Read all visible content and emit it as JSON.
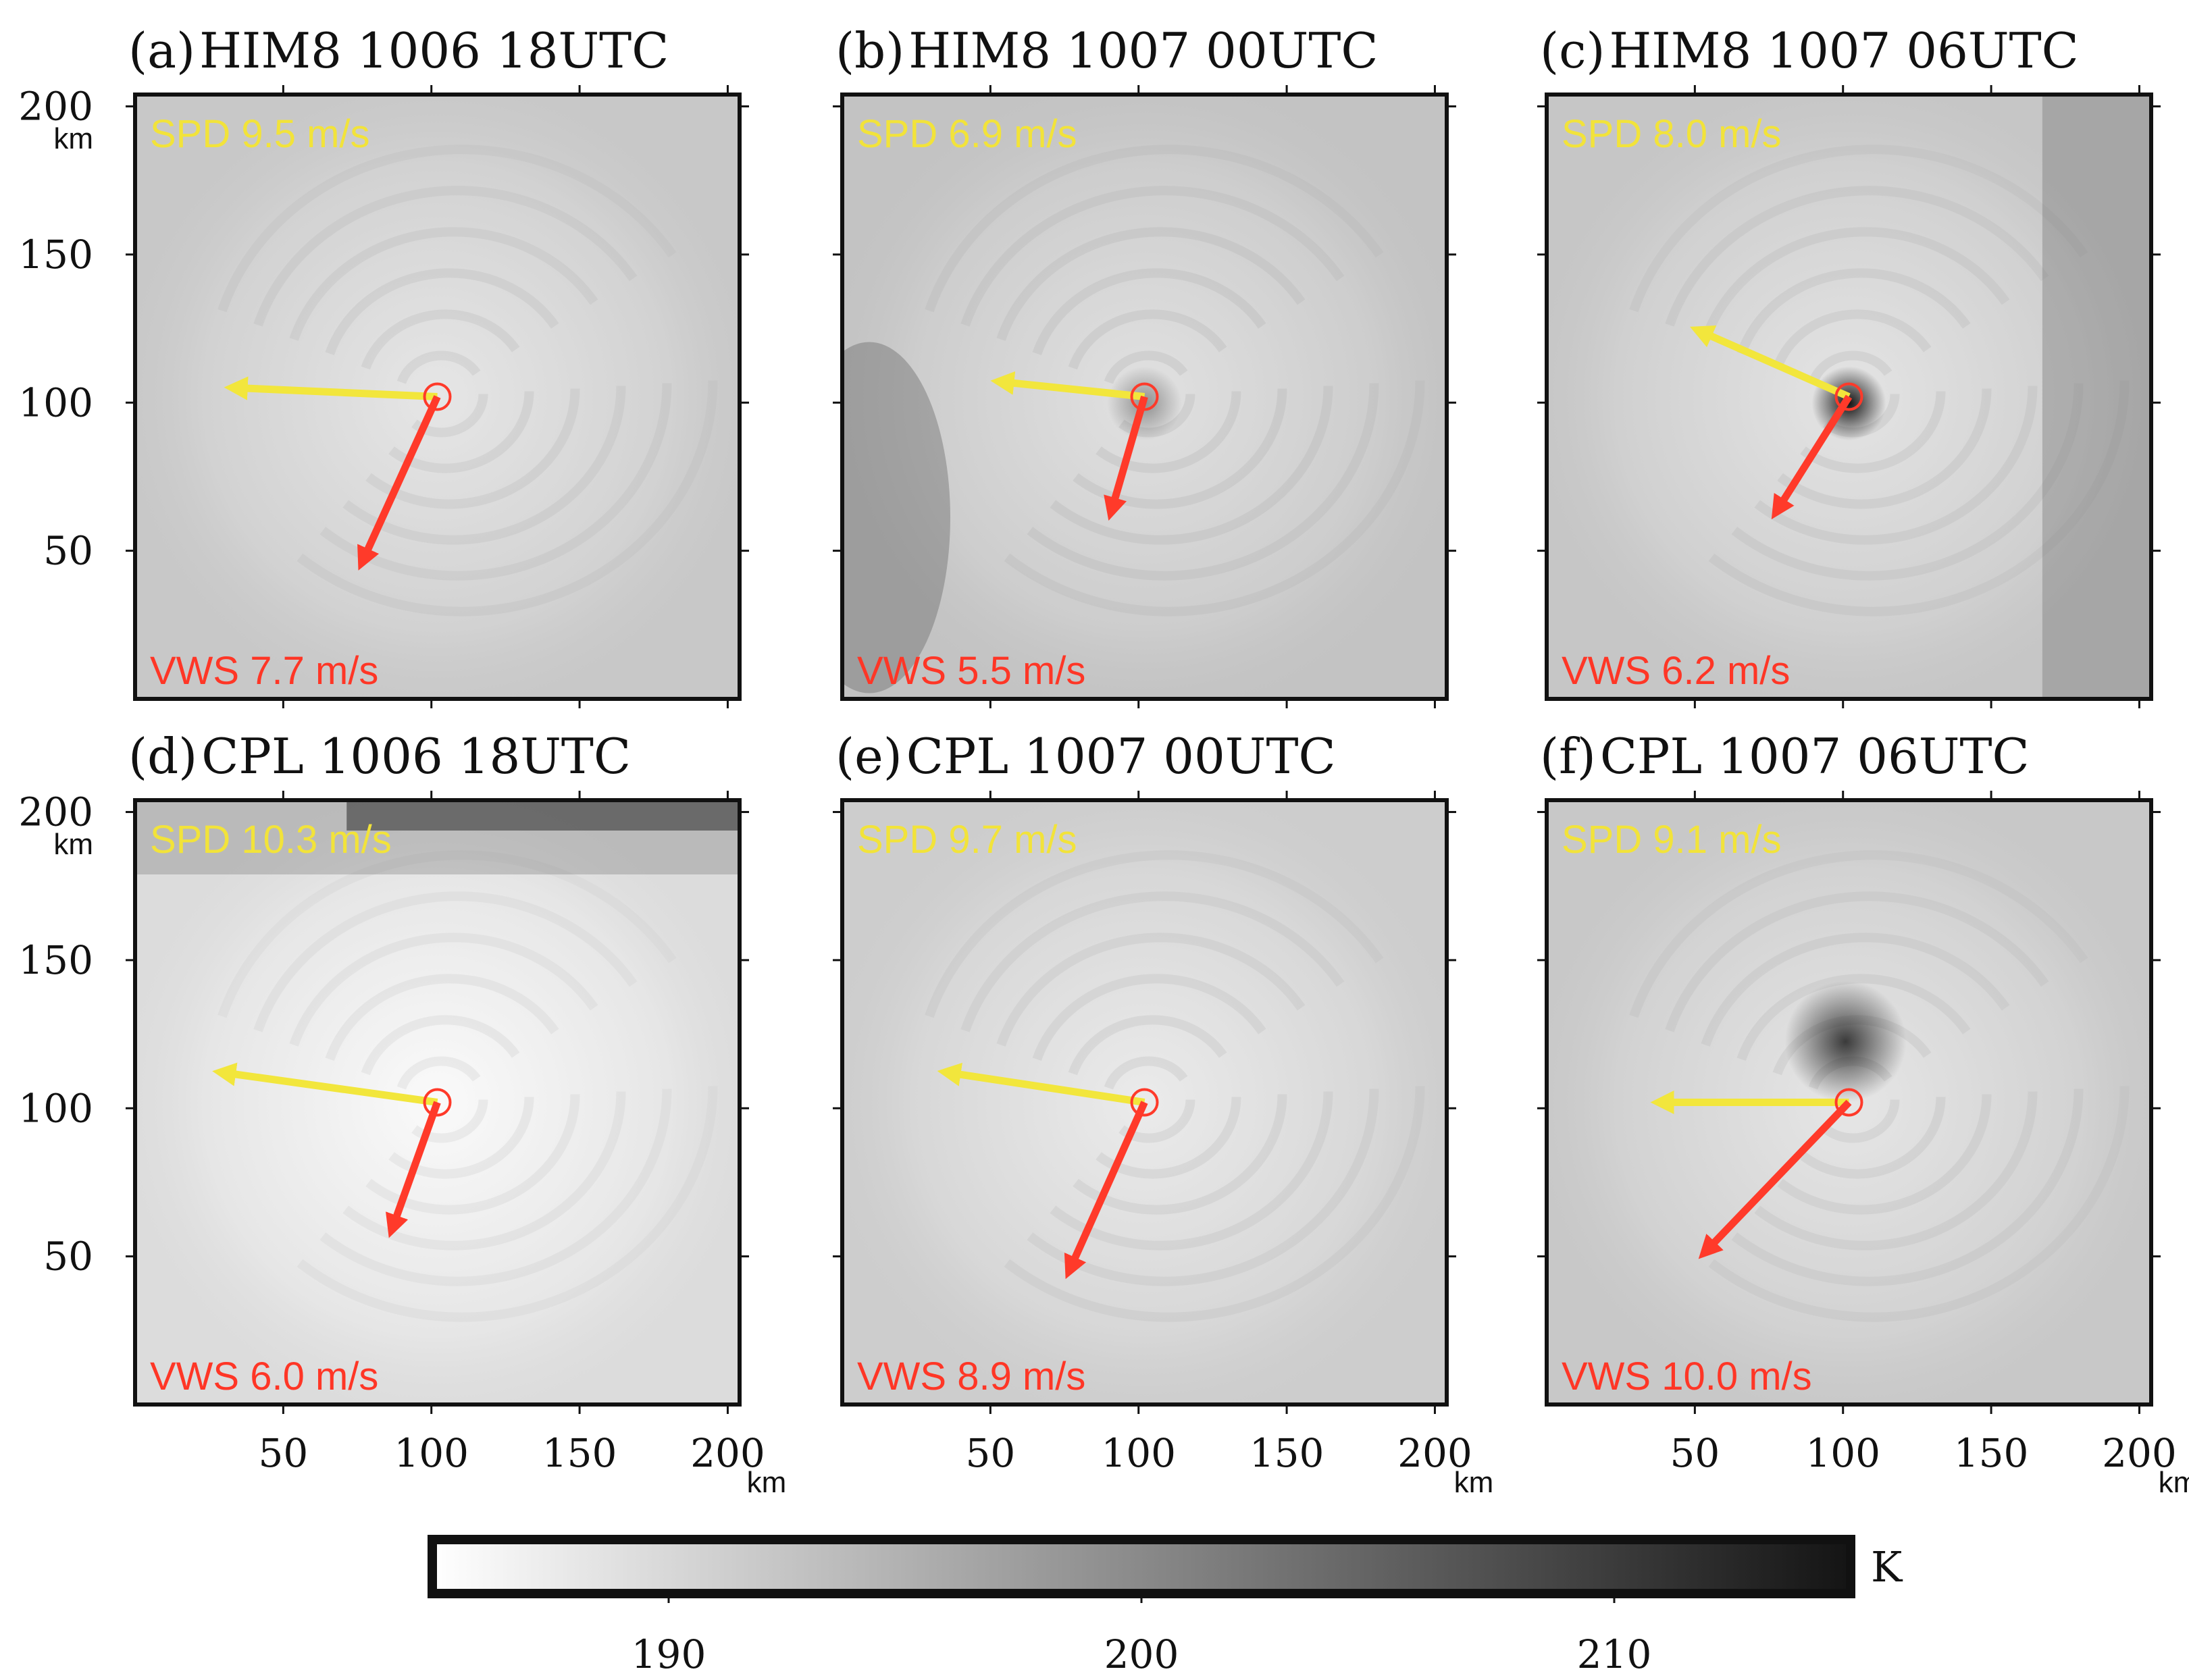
{
  "figure": {
    "colorbar": {
      "unit": "K",
      "ticks": [
        "190",
        "200",
        "210"
      ],
      "range": [
        185,
        215
      ],
      "tick_values": [
        190,
        200,
        210
      ],
      "colors": [
        "#ffffff",
        "#141414"
      ]
    },
    "colors": {
      "spd_arrow": "#f2e63c",
      "spd_text": "#f2e33a",
      "vws_arrow": "#ff3a2a",
      "vws_text": "#ff3626",
      "center_marker": "#ff3a2a"
    },
    "axis": {
      "unit": "km",
      "x_ticks": [
        "50",
        "100",
        "150",
        "200"
      ],
      "y_ticks": [
        "50",
        "100",
        "150",
        "200"
      ],
      "range": [
        0,
        204
      ],
      "tick_values": [
        50,
        100,
        150,
        200
      ]
    },
    "panels": [
      {
        "id": "a",
        "label": "(a)",
        "title": "HIM8 1006 18UTC",
        "spd": "SPD 9.5 m/s",
        "vws": "VWS 7.7 m/s",
        "center": [
          102,
          102
        ],
        "spd_vec": [
          -68,
          3
        ],
        "vws_vec": [
          -25,
          -55
        ],
        "base_gray": 200,
        "eye": 0,
        "dark_band": "none"
      },
      {
        "id": "b",
        "label": "(b)",
        "title": "HIM8 1007 00UTC",
        "spd": "SPD 6.9 m/s",
        "vws": "VWS 5.5 m/s",
        "center": [
          102,
          102
        ],
        "spd_vec": [
          -48,
          5
        ],
        "vws_vec": [
          -11,
          -38
        ],
        "base_gray": 195,
        "eye": 0.4,
        "dark_band": "left"
      },
      {
        "id": "c",
        "label": "(c)",
        "title": "HIM8 1007 06UTC",
        "spd": "SPD 8.0 m/s",
        "vws": "VWS 6.2 m/s",
        "center": [
          102,
          102
        ],
        "spd_vec": [
          -50,
          22
        ],
        "vws_vec": [
          -24,
          -38
        ],
        "base_gray": 198,
        "eye": 1,
        "dark_band": "right"
      },
      {
        "id": "d",
        "label": "(d)",
        "title": "CPL 1006 18UTC",
        "spd": "SPD 10.3 m/s",
        "vws": "VWS 6.0 m/s",
        "center": [
          102,
          102
        ],
        "spd_vec": [
          -72,
          10
        ],
        "vws_vec": [
          -15,
          -42
        ],
        "base_gray": 220,
        "eye": 0,
        "dark_band": "top"
      },
      {
        "id": "e",
        "label": "(e)",
        "title": "CPL 1007 00UTC",
        "spd": "SPD 9.7 m/s",
        "vws": "VWS 8.9 m/s",
        "center": [
          102,
          102
        ],
        "spd_vec": [
          -66,
          10
        ],
        "vws_vec": [
          -25,
          -56
        ],
        "base_gray": 205,
        "eye": 0,
        "dark_band": "none"
      },
      {
        "id": "f",
        "label": "(f)",
        "title": "CPL 1007 06UTC",
        "spd": "SPD 9.1 m/s",
        "vws": "VWS 10.0 m/s",
        "center": [
          102,
          102
        ],
        "spd_vec": [
          -63,
          0
        ],
        "vws_vec": [
          -48,
          -50
        ],
        "base_gray": 200,
        "eye": 0.8,
        "dark_band": "none"
      }
    ]
  }
}
